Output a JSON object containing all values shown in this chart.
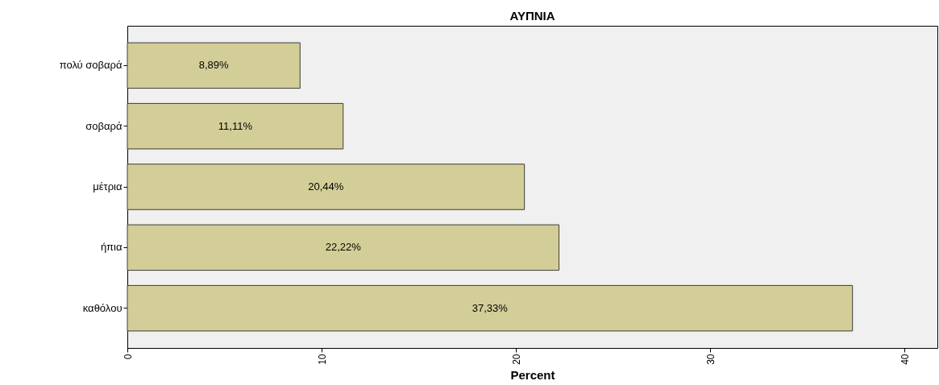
{
  "chart_data": {
    "type": "bar",
    "orientation": "horizontal",
    "title": "ΑΥΠΝΙΑ",
    "xlabel": "Percent",
    "categories": [
      "πολύ σοβαρά",
      "σοβαρά",
      "μέτρια",
      "ήπια",
      "καθόλου"
    ],
    "values": [
      8.89,
      11.11,
      20.44,
      22.22,
      37.33
    ],
    "value_labels": [
      "8,89%",
      "11,11%",
      "20,44%",
      "22,22%",
      "37,33%"
    ],
    "color": "#d3ce97",
    "xlim": [
      0,
      41.7
    ],
    "xticks": [
      0,
      10,
      20,
      30,
      40
    ],
    "grid": false
  }
}
